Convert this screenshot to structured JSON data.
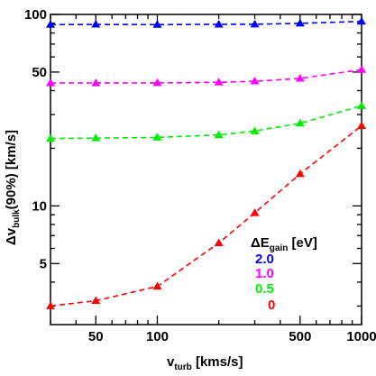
{
  "chart_data": {
    "type": "line",
    "x_scale": "log",
    "y_scale": "log",
    "xlim": [
      30,
      1000
    ],
    "ylim": [
      2.4,
      100
    ],
    "xlabel": {
      "main": "v",
      "sub": "turb",
      "rest": " [kms/s]"
    },
    "ylabel": {
      "main": "Δv",
      "sub": "bulk",
      "rest": "(90%) [km/s]"
    },
    "x_ticks": [
      50,
      100,
      500,
      1000
    ],
    "y_ticks": [
      5,
      10,
      50,
      100
    ],
    "legend": {
      "title": {
        "main": "ΔE",
        "sub": "gain",
        "rest": " [eV]"
      },
      "placement": "lower-right"
    },
    "series": [
      {
        "name": "2.0",
        "color": "#0000ff",
        "x": [
          30,
          50,
          100,
          200,
          300,
          500,
          1000
        ],
        "y": [
          88.5,
          88.7,
          88.5,
          88.8,
          88.9,
          89.8,
          92.0
        ]
      },
      {
        "name": "1.0",
        "color": "#ff00ff",
        "x": [
          30,
          50,
          100,
          200,
          300,
          500,
          1000
        ],
        "y": [
          43.8,
          43.8,
          43.9,
          44.2,
          44.8,
          46.3,
          51.5
        ]
      },
      {
        "name": "0.5",
        "color": "#00ee00",
        "x": [
          30,
          50,
          100,
          200,
          300,
          500,
          1000
        ],
        "y": [
          22.5,
          22.6,
          22.8,
          23.5,
          24.6,
          27.0,
          33.3
        ]
      },
      {
        "name": "0",
        "color": "#ff0000",
        "x": [
          30,
          50,
          100,
          200,
          300,
          500,
          1000
        ],
        "y": [
          3.0,
          3.2,
          3.8,
          6.4,
          9.2,
          14.7,
          26.2
        ]
      }
    ]
  }
}
